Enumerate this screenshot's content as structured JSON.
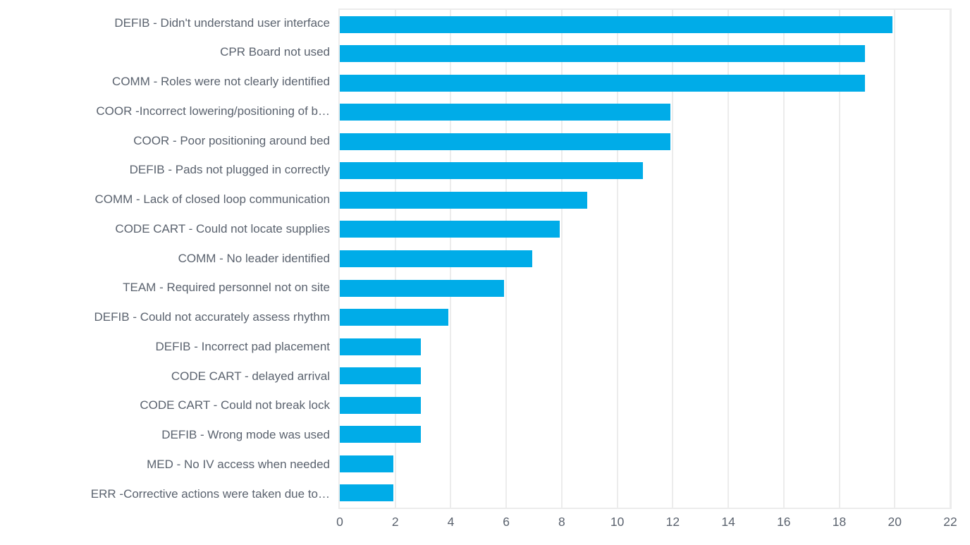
{
  "chart_data": {
    "type": "bar",
    "orientation": "horizontal",
    "title": "",
    "xlabel": "",
    "ylabel": "",
    "xlim": [
      0,
      22
    ],
    "x_ticks": [
      0,
      2,
      4,
      6,
      8,
      10,
      12,
      14,
      16,
      18,
      20,
      22
    ],
    "grid": true,
    "legend": "none",
    "bar_color": "#00ace8",
    "label_color": "#5a626e",
    "gridline_color": "#ececec",
    "categories": [
      "DEFIB - Didn't understand user interface",
      "CPR Board not used",
      "COMM - Roles were not clearly identified",
      "COOR -Incorrect lowering/positioning of b…",
      "COOR - Poor positioning around bed",
      "DEFIB - Pads not plugged in correctly",
      "COMM - Lack of closed loop communication",
      "CODE CART - Could not locate supplies",
      "COMM - No leader identified",
      "TEAM - Required personnel not on site",
      "DEFIB - Could not accurately assess rhythm",
      "DEFIB - Incorrect pad placement",
      "CODE CART - delayed arrival",
      "CODE CART - Could not break lock",
      "DEFIB - Wrong mode was used",
      "MED - No IV access when needed",
      "ERR -Corrective actions were taken due to…"
    ],
    "values": [
      20,
      19,
      19,
      12,
      12,
      11,
      9,
      8,
      7,
      6,
      4,
      3,
      3,
      3,
      3,
      2,
      2
    ]
  }
}
